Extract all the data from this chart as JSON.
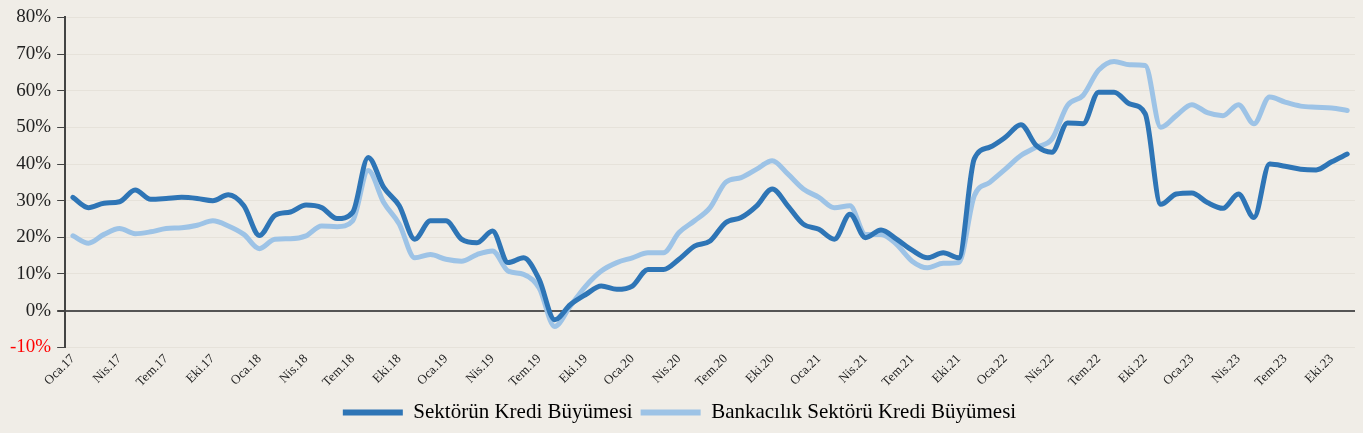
{
  "chart_data": {
    "type": "line",
    "categories": [
      "Oca.17",
      null,
      null,
      "Nis.17",
      null,
      null,
      "Tem.17",
      null,
      null,
      "Eki.17",
      null,
      null,
      "Oca.18",
      null,
      null,
      "Nis.18",
      null,
      null,
      "Tem.18",
      null,
      null,
      "Eki.18",
      null,
      null,
      "Oca.19",
      null,
      null,
      "Nis.19",
      null,
      null,
      "Tem.19",
      null,
      null,
      "Eki.19",
      null,
      null,
      "Oca.20",
      null,
      null,
      "Nis.20",
      null,
      null,
      "Tem.20",
      null,
      null,
      "Eki.20",
      null,
      null,
      "Oca.21",
      null,
      null,
      "Nis.21",
      null,
      null,
      "Tem.21",
      null,
      null,
      "Eki.21",
      null,
      null,
      "Oca.22",
      null,
      null,
      "Nis.22",
      null,
      null,
      "Tem.22",
      null,
      null,
      "Eki.22",
      null,
      null,
      "Oca.23",
      null,
      null,
      "Nis.23",
      null,
      null,
      "Tem.23",
      null,
      null,
      "Eki.23",
      null
    ],
    "series": [
      {
        "name": "Sektörün Kredi Büyümesi",
        "color": "#2e75b6",
        "values": [
          30.9,
          28.1,
          29.3,
          29.7,
          32.9,
          30.4,
          30.6,
          30.9,
          30.6,
          30.0,
          31.6,
          28.6,
          20.5,
          26.0,
          26.9,
          28.8,
          28.1,
          25.1,
          26.8,
          41.8,
          33.6,
          28.6,
          19.5,
          24.5,
          24.5,
          19.5,
          18.5,
          21.7,
          13.1,
          14.4,
          8.5,
          -2.5,
          1.6,
          4.4,
          6.7,
          5.8,
          6.7,
          11.2,
          11.2,
          14.0,
          17.6,
          19.0,
          24.0,
          25.4,
          28.6,
          33.2,
          28.6,
          23.6,
          22.2,
          19.5,
          26.3,
          19.9,
          22.0,
          19.5,
          16.5,
          14.4,
          15.8,
          14.4,
          41.4,
          44.6,
          47.3,
          50.7,
          45.0,
          43.2,
          51.2,
          51.0,
          59.6,
          59.6,
          56.4,
          53.7,
          29.0,
          31.8,
          32.1,
          29.5,
          27.9,
          31.8,
          25.4,
          40.0,
          39.4,
          38.6,
          38.4,
          40.6,
          42.7
        ]
      },
      {
        "name": "Bankacılık Sektörü Kredi Büyümesi",
        "color": "#9dc3e6",
        "values": [
          20.4,
          18.4,
          20.8,
          22.4,
          21.0,
          21.5,
          22.4,
          22.6,
          23.3,
          24.5,
          23.1,
          20.8,
          16.9,
          19.5,
          19.6,
          20.4,
          23.1,
          22.9,
          24.5,
          38.2,
          29.5,
          23.6,
          14.4,
          15.3,
          14.0,
          13.5,
          15.3,
          16.3,
          10.8,
          9.9,
          6.2,
          -4.3,
          1.2,
          6.7,
          10.8,
          13.1,
          14.4,
          15.8,
          15.8,
          21.3,
          24.5,
          28.1,
          35.0,
          36.3,
          38.6,
          40.9,
          37.3,
          33.2,
          30.9,
          28.1,
          28.6,
          20.8,
          20.8,
          18.1,
          13.5,
          11.7,
          12.9,
          13.1,
          31.3,
          35.0,
          38.6,
          42.3,
          44.6,
          46.8,
          56.0,
          58.7,
          65.6,
          68.0,
          67.1,
          66.9,
          50.0,
          53.2,
          56.2,
          54.0,
          53.2,
          56.2,
          51.0,
          58.3,
          56.9,
          55.8,
          55.5,
          55.3,
          54.6
        ]
      }
    ],
    "ylim": [
      -10,
      80
    ],
    "yticks": [
      {
        "value": -10,
        "label": "-10%"
      },
      {
        "value": 0,
        "label": "0%"
      },
      {
        "value": 10,
        "label": "10%"
      },
      {
        "value": 20,
        "label": "20%"
      },
      {
        "value": 30,
        "label": "30%"
      },
      {
        "value": 40,
        "label": "40%"
      },
      {
        "value": 50,
        "label": "50%"
      },
      {
        "value": 60,
        "label": "60%"
      },
      {
        "value": 70,
        "label": "70%"
      },
      {
        "value": 80,
        "label": "80%"
      }
    ],
    "grid": "y",
    "legend": "bottom",
    "marker": "none",
    "line_style": "solid"
  }
}
